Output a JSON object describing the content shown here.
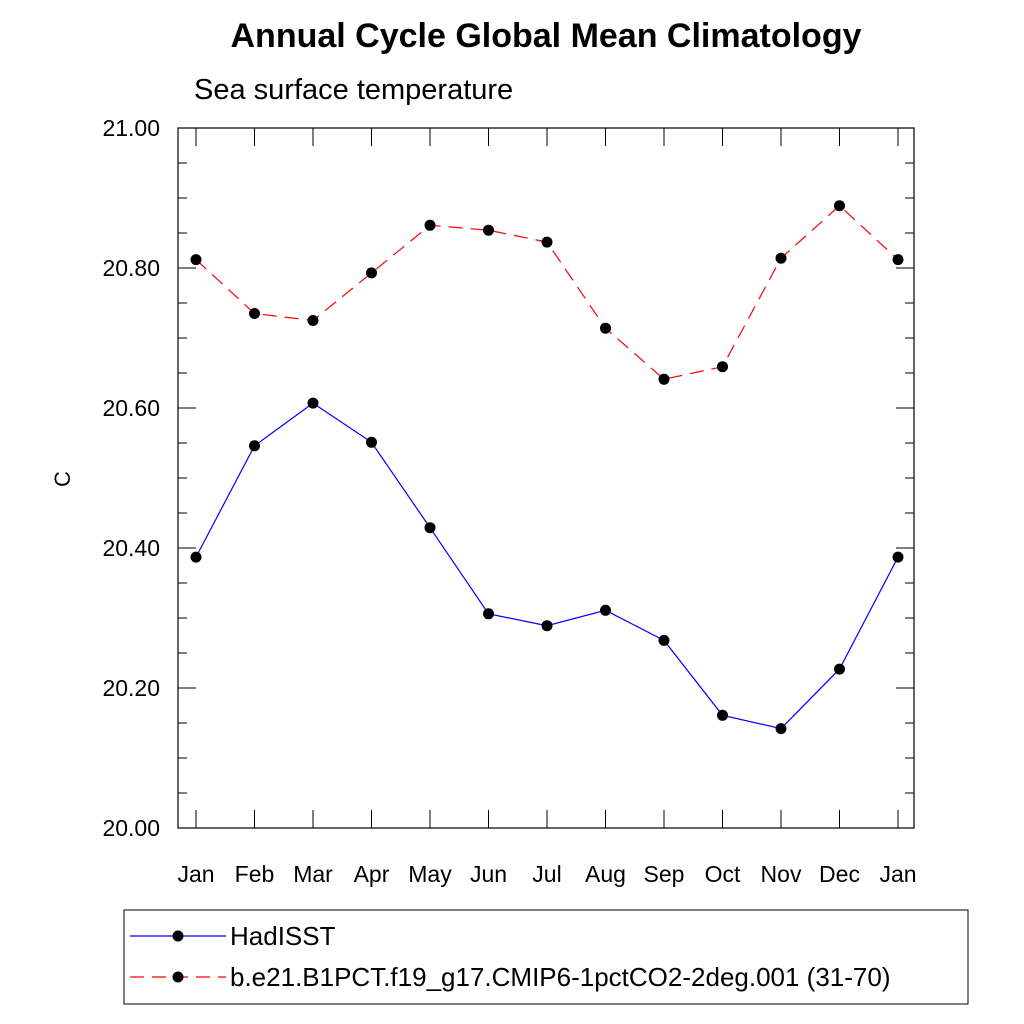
{
  "chart_data": {
    "type": "line",
    "title": "Annual Cycle Global Mean Climatology",
    "subtitle": "Sea surface temperature",
    "xlabel": "",
    "ylabel": "C",
    "categories": [
      "Jan",
      "Feb",
      "Mar",
      "Apr",
      "May",
      "Jun",
      "Jul",
      "Aug",
      "Sep",
      "Oct",
      "Nov",
      "Dec",
      "Jan"
    ],
    "ylim": [
      20.0,
      21.0
    ],
    "yticks": [
      "20.00",
      "20.20",
      "20.40",
      "20.60",
      "20.80",
      "21.00"
    ],
    "grid": false,
    "legend_position": "bottom",
    "series": [
      {
        "name": "HadISST",
        "color": "#0000ff",
        "line_style": "solid",
        "marker": "filled-circle",
        "values": [
          20.387,
          20.546,
          20.607,
          20.551,
          20.429,
          20.306,
          20.289,
          20.311,
          20.268,
          20.161,
          20.142,
          20.227,
          20.387
        ]
      },
      {
        "name": "b.e21.B1PCT.f19_g17.CMIP6-1pctCO2-2deg.001 (31-70)",
        "color": "#ff0000",
        "line_style": "dashed",
        "marker": "filled-circle",
        "values": [
          20.812,
          20.735,
          20.725,
          20.793,
          20.861,
          20.854,
          20.837,
          20.714,
          20.641,
          20.659,
          20.814,
          20.889,
          20.812
        ]
      }
    ]
  }
}
